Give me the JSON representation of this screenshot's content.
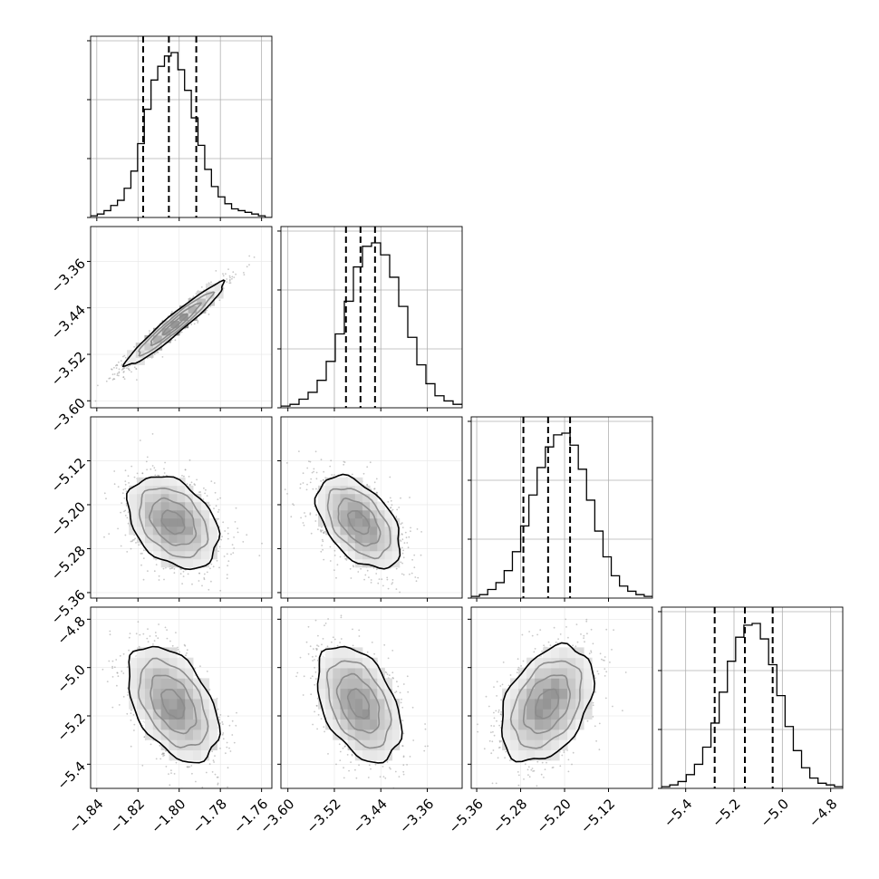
{
  "chart_data": {
    "type": "corner",
    "parameters": [
      {
        "ticks": [
          -1.84,
          -1.82,
          -1.8,
          -1.78,
          -1.76
        ],
        "tick_labels": [
          "−1.84",
          "−1.82",
          "−1.80",
          "−1.78",
          "−1.76"
        ],
        "range": [
          -1.843,
          -1.755
        ],
        "quantiles": [
          -1.8175,
          -1.805,
          -1.7917
        ],
        "hist": [
          1,
          2,
          4,
          7,
          10,
          17,
          27,
          43,
          63,
          80,
          88,
          94,
          96,
          86,
          74,
          58,
          42,
          28,
          18,
          12,
          8,
          5,
          4,
          3,
          2,
          1,
          0
        ]
      },
      {
        "ticks": [
          -3.6,
          -3.52,
          -3.44,
          -3.36
        ],
        "tick_labels": [
          "−3.60",
          "−3.52",
          "−3.44",
          "−3.36"
        ],
        "range": [
          -3.612,
          -3.3
        ],
        "quantiles": [
          -3.5,
          -3.475,
          -3.45
        ],
        "hist": [
          1,
          2,
          5,
          9,
          16,
          27,
          43,
          62,
          82,
          94,
          96,
          89,
          76,
          59,
          41,
          25,
          14,
          7,
          4,
          2
        ]
      },
      {
        "ticks": [
          -5.36,
          -5.28,
          -5.2,
          -5.12
        ],
        "tick_labels": [
          "−5.36",
          "−5.28",
          "−5.20",
          "−5.12"
        ],
        "range": [
          -5.37,
          -5.04
        ],
        "quantiles": [
          -5.275,
          -5.23,
          -5.19
        ],
        "hist": [
          1,
          2,
          5,
          9,
          16,
          27,
          42,
          60,
          76,
          88,
          95,
          96,
          89,
          75,
          57,
          39,
          24,
          13,
          7,
          4,
          2,
          1
        ]
      },
      {
        "ticks": [
          -5.4,
          -5.2,
          -5.0,
          -4.8
        ],
        "tick_labels": [
          "−5.4",
          "−5.2",
          "−5.0",
          "−4.8"
        ],
        "range": [
          -5.5,
          -4.75
        ],
        "quantiles": [
          -5.28,
          -5.155,
          -5.04
        ],
        "hist": [
          1,
          2,
          4,
          8,
          14,
          24,
          38,
          56,
          74,
          88,
          95,
          96,
          87,
          72,
          54,
          36,
          22,
          12,
          6,
          3,
          2,
          1
        ]
      }
    ],
    "pairs": [
      {
        "row": 1,
        "col": 0,
        "center": [
          -1.802,
          -3.468
        ],
        "sd": [
          0.012,
          0.036
        ],
        "corr": 0.96
      },
      {
        "row": 2,
        "col": 0,
        "center": [
          -1.803,
          -5.232
        ],
        "sd": [
          0.011,
          0.042
        ],
        "corr": -0.35
      },
      {
        "row": 2,
        "col": 1,
        "center": [
          -3.478,
          -5.232
        ],
        "sd": [
          0.036,
          0.042
        ],
        "corr": -0.48
      },
      {
        "row": 3,
        "col": 0,
        "center": [
          -1.803,
          -5.15
        ],
        "sd": [
          0.011,
          0.12
        ],
        "corr": -0.45
      },
      {
        "row": 3,
        "col": 1,
        "center": [
          -3.478,
          -5.15
        ],
        "sd": [
          0.036,
          0.12
        ],
        "corr": -0.42
      },
      {
        "row": 3,
        "col": 2,
        "center": [
          -5.232,
          -5.15
        ],
        "sd": [
          0.042,
          0.12
        ],
        "corr": 0.38
      }
    ],
    "contour_levels_sigma": [
      0.5,
      1.0,
      1.5,
      2.0
    ],
    "grid": true,
    "colors": {
      "line": "#000000",
      "grid": "#b0b0b0",
      "points": "#9a9a9a"
    }
  }
}
